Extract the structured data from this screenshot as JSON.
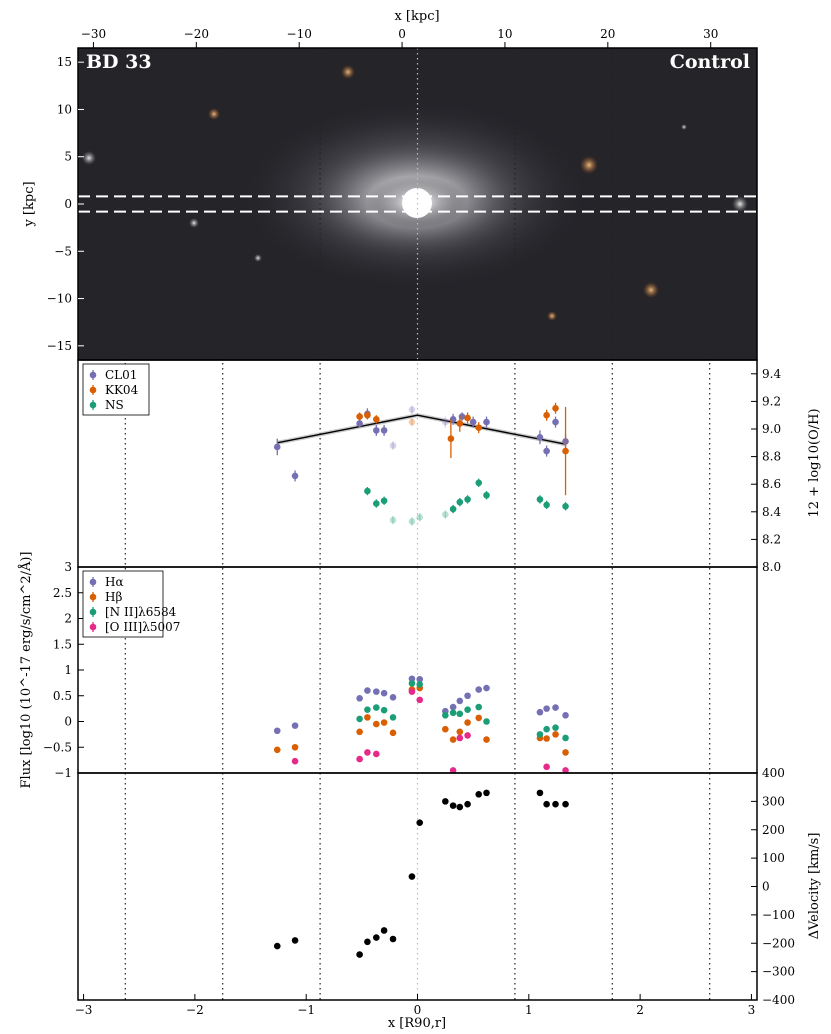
{
  "figure": {
    "image_panel": {
      "label_left": "BD 33",
      "label_right": "Control",
      "top_axis_label": "x [kpc]",
      "y_axis_label": "y [kpc]"
    },
    "bottom_axis_label": "x [R90,r]",
    "metallicity_axis_label": "12 + log10(O/H)",
    "flux_axis_label": "Flux [log10 (10^-17 erg/s/cm^2/Å)]",
    "velocity_axis_label": "ΔVelocity [km/s]"
  },
  "chart_data": [
    {
      "type": "image",
      "panel": "image",
      "xlabel": "x [kpc]",
      "ylabel": "y [kpc]",
      "xlim": [
        -31.5,
        34.5
      ],
      "ylim": [
        -16.5,
        16.5
      ],
      "xticks": [
        -30,
        -20,
        -10,
        0,
        10,
        20,
        30
      ],
      "yticks": [
        -15,
        -10,
        -5,
        0,
        5,
        10,
        15
      ],
      "slit_lines_y": [
        0.8,
        -0.8
      ],
      "reference_lines_x_norm": [
        -2.625,
        -1.75,
        -0.875,
        0,
        0.875,
        1.75,
        2.625
      ],
      "text": [
        "BD 33",
        "Control"
      ]
    },
    {
      "type": "scatter",
      "panel": "metallicity",
      "ylabel": "12 + log10(O/H)",
      "xlim": [
        -3.05,
        3.05
      ],
      "ylim": [
        8.0,
        9.5
      ],
      "yticks": [
        8.0,
        8.2,
        8.4,
        8.6,
        8.8,
        9.0,
        9.2,
        9.4
      ],
      "legend": "upper-left",
      "series": [
        {
          "name": "CL01",
          "color": "#7570b3",
          "x": [
            -1.26,
            -1.1,
            -0.52,
            -0.45,
            -0.37,
            -0.3,
            -0.22,
            -0.05,
            0.25,
            0.32,
            0.4,
            0.5,
            0.62,
            1.1,
            1.16,
            1.24,
            1.33
          ],
          "y": [
            8.87,
            8.66,
            9.04,
            9.11,
            8.99,
            8.99,
            8.88,
            9.14,
            9.05,
            9.07,
            9.09,
            9.05,
            9.05,
            8.94,
            8.84,
            9.05,
            8.91
          ],
          "err": [
            0.06,
            0.04,
            0.03,
            0.04,
            0.04,
            0.04,
            0.03,
            0.03,
            0.04,
            0.04,
            0.03,
            0.04,
            0.04,
            0.05,
            0.04,
            0.04,
            0.05
          ]
        },
        {
          "name": "KK04",
          "color": "#d95f02",
          "x": [
            -0.52,
            -0.45,
            -0.37,
            -0.05,
            0.3,
            0.38,
            0.45,
            0.55,
            1.16,
            1.24,
            1.33
          ],
          "y": [
            9.09,
            9.1,
            9.07,
            9.05,
            8.93,
            9.04,
            9.08,
            9.01,
            9.1,
            9.15,
            8.84
          ],
          "err": [
            0.03,
            0.03,
            0.03,
            0.03,
            0.14,
            0.06,
            0.04,
            0.04,
            0.04,
            0.04,
            0.32
          ]
        },
        {
          "name": "NS",
          "color": "#1b9e77",
          "x": [
            -0.45,
            -0.37,
            -0.3,
            -0.22,
            -0.05,
            0.02,
            0.25,
            0.32,
            0.38,
            0.45,
            0.55,
            0.62,
            1.1,
            1.16,
            1.33
          ],
          "y": [
            8.55,
            8.46,
            8.48,
            8.34,
            8.33,
            8.36,
            8.38,
            8.42,
            8.47,
            8.49,
            8.61,
            8.52,
            8.49,
            8.45,
            8.44
          ],
          "err": [
            0.03,
            0.03,
            0.03,
            0.03,
            0.03,
            0.03,
            0.03,
            0.03,
            0.03,
            0.03,
            0.03,
            0.03,
            0.03,
            0.03,
            0.03
          ]
        }
      ],
      "fit_line": {
        "x": [
          -1.26,
          0.0,
          1.33
        ],
        "y": [
          8.9,
          9.1,
          8.89
        ]
      }
    },
    {
      "type": "scatter",
      "panel": "flux",
      "ylabel": "Flux [log10 (10^-17 erg/s/cm^2/Å)]",
      "xlim": [
        -3.05,
        3.05
      ],
      "ylim": [
        -1.0,
        3.0
      ],
      "yticks": [
        -1.0,
        -0.5,
        0.0,
        0.5,
        1.0,
        1.5,
        2.0,
        2.5,
        3.0
      ],
      "legend": "upper-left",
      "series": [
        {
          "name": "Hα",
          "color": "#7570b3",
          "x": [
            -1.26,
            -1.1,
            -0.52,
            -0.45,
            -0.37,
            -0.3,
            -0.22,
            -0.05,
            0.02,
            0.25,
            0.32,
            0.38,
            0.45,
            0.55,
            0.62,
            1.1,
            1.16,
            1.24,
            1.33
          ],
          "y": [
            -0.18,
            -0.08,
            0.45,
            0.6,
            0.58,
            0.55,
            0.47,
            0.83,
            0.82,
            0.2,
            0.28,
            0.4,
            0.5,
            0.62,
            0.65,
            0.18,
            0.25,
            0.27,
            0.12
          ]
        },
        {
          "name": "Hβ",
          "color": "#d95f02",
          "x": [
            -1.26,
            -1.1,
            -0.52,
            -0.45,
            -0.37,
            -0.3,
            -0.22,
            -0.05,
            0.02,
            0.25,
            0.32,
            0.38,
            0.45,
            0.55,
            0.62,
            1.1,
            1.16,
            1.24,
            1.33
          ],
          "y": [
            -0.55,
            -0.5,
            -0.2,
            0.08,
            -0.05,
            -0.02,
            -0.22,
            0.62,
            0.65,
            -0.15,
            -0.35,
            -0.2,
            -0.02,
            0.07,
            -0.35,
            -0.32,
            -0.33,
            -0.25,
            -0.6
          ]
        },
        {
          "name": "[N II]λ6584",
          "color": "#1b9e77",
          "x": [
            -0.52,
            -0.45,
            -0.37,
            -0.3,
            -0.22,
            -0.05,
            0.02,
            0.25,
            0.32,
            0.38,
            0.45,
            0.55,
            0.62,
            1.1,
            1.16,
            1.24,
            1.33
          ],
          "y": [
            0.05,
            0.23,
            0.27,
            0.22,
            0.08,
            0.74,
            0.72,
            0.12,
            0.17,
            0.15,
            0.23,
            0.28,
            0.0,
            -0.25,
            -0.15,
            -0.12,
            -0.32
          ]
        },
        {
          "name": "[O III]λ5007",
          "color": "#e7298a",
          "x": [
            -1.1,
            -0.52,
            -0.45,
            -0.37,
            -0.05,
            0.02,
            0.32,
            0.38,
            0.45,
            1.16,
            1.33
          ],
          "y": [
            -0.77,
            -0.73,
            -0.6,
            -0.63,
            0.58,
            0.42,
            -0.95,
            -0.32,
            -0.27,
            -0.88,
            -0.95
          ]
        }
      ]
    },
    {
      "type": "scatter",
      "panel": "velocity",
      "xlabel": "x [R90,r]",
      "ylabel": "ΔVelocity [km/s]",
      "xlim": [
        -3.05,
        3.05
      ],
      "ylim": [
        -400,
        400
      ],
      "xticks": [
        -3,
        -2,
        -1,
        0,
        1,
        2,
        3
      ],
      "yticks": [
        -400,
        -300,
        -200,
        -100,
        0,
        100,
        200,
        300,
        400
      ],
      "series": [
        {
          "name": "",
          "color": "#000000",
          "x": [
            -1.26,
            -1.1,
            -0.52,
            -0.45,
            -0.37,
            -0.3,
            -0.22,
            -0.05,
            0.02,
            0.25,
            0.32,
            0.38,
            0.45,
            0.55,
            0.62,
            1.1,
            1.16,
            1.24,
            1.33
          ],
          "y": [
            -210,
            -190,
            -240,
            -195,
            -180,
            -155,
            -185,
            35,
            225,
            300,
            285,
            280,
            290,
            325,
            330,
            330,
            290,
            290,
            290
          ]
        }
      ]
    }
  ]
}
